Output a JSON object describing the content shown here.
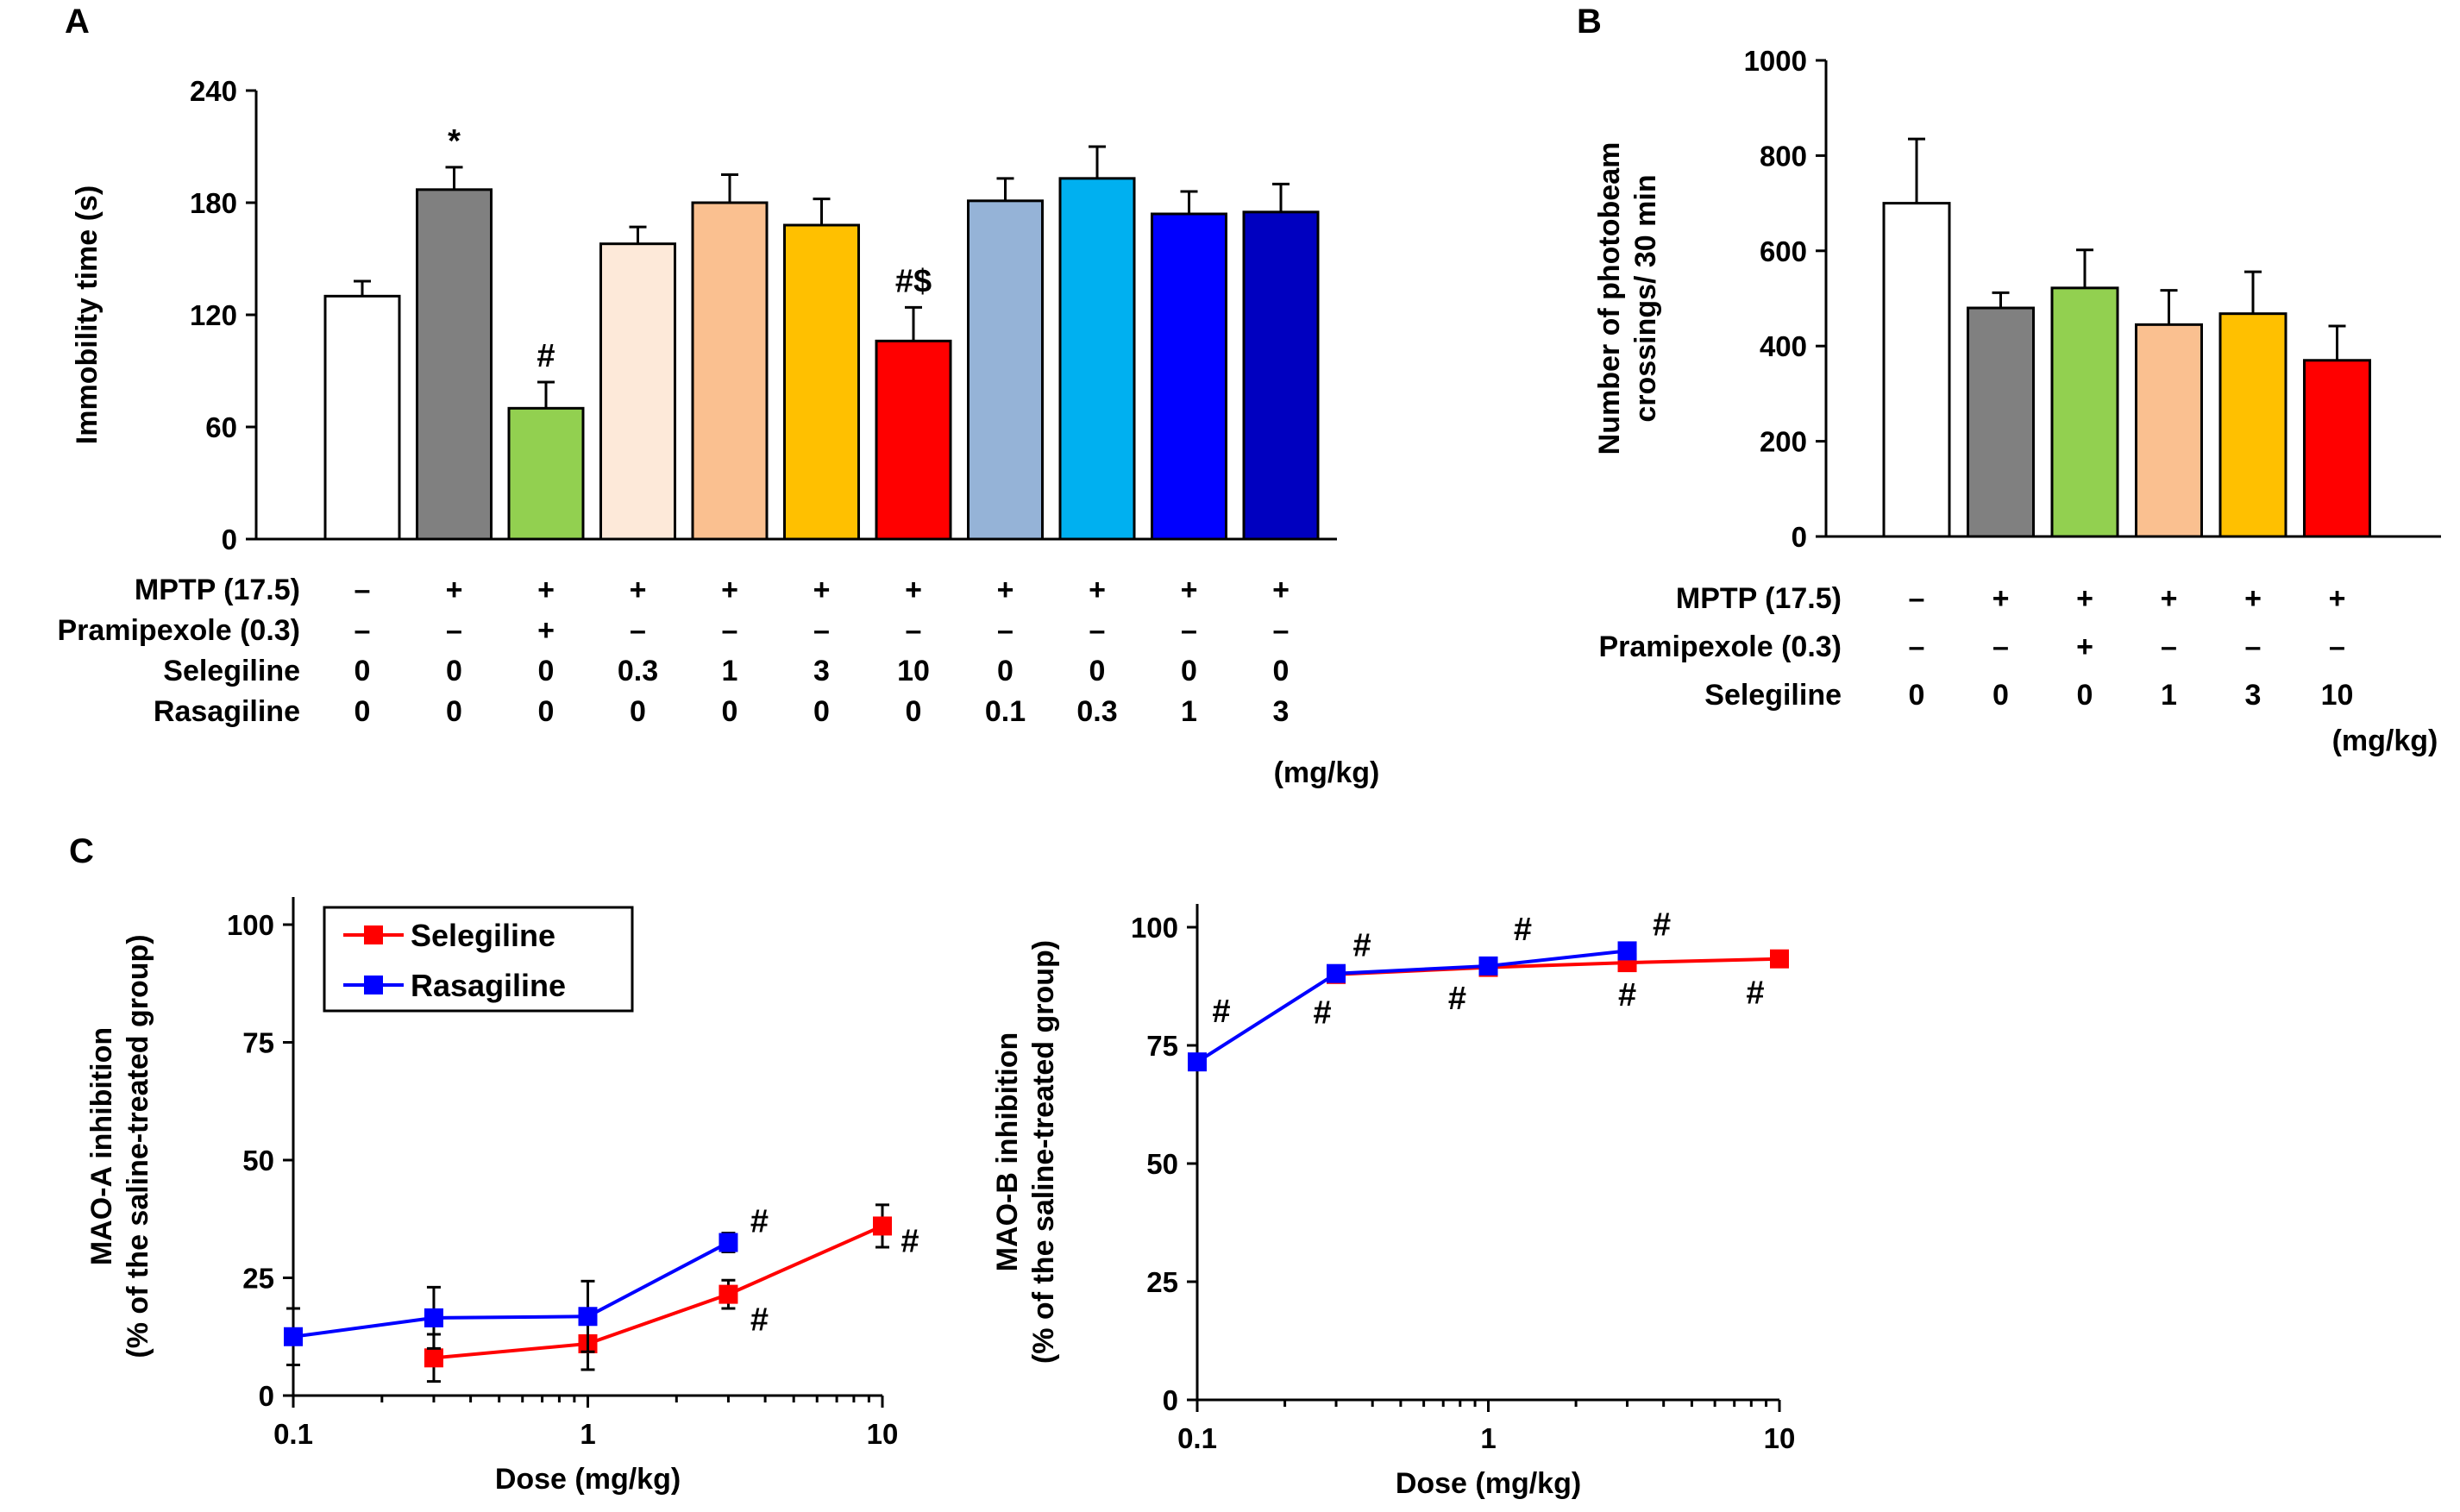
{
  "chart_data": [
    {
      "panel": "A",
      "type": "bar",
      "ylabel": "Immobility time (s)",
      "ylim": [
        0,
        240
      ],
      "yticks": [
        0,
        60,
        120,
        180,
        240
      ],
      "values": [
        130,
        187,
        70,
        158,
        180,
        168,
        106,
        181,
        193,
        174,
        175
      ],
      "errors": [
        8,
        12,
        14,
        9,
        15,
        14,
        18,
        12,
        17,
        12,
        15
      ],
      "colors": [
        "#ffffff",
        "#808080",
        "#92d050",
        "#fde9d9",
        "#fac090",
        "#ffc000",
        "#ff0000",
        "#95b3d7",
        "#00b0f0",
        "#0000ff",
        "#0000c0"
      ],
      "annotations": [
        "",
        "*",
        "#",
        "",
        "",
        "",
        "#$",
        "",
        "",
        "",
        ""
      ],
      "table": [
        {
          "label": "MPTP (17.5)",
          "cells": [
            "–",
            "+",
            "+",
            "+",
            "+",
            "+",
            "+",
            "+",
            "+",
            "+",
            "+"
          ]
        },
        {
          "label": "Pramipexole (0.3)",
          "cells": [
            "–",
            "–",
            "+",
            "–",
            "–",
            "–",
            "–",
            "–",
            "–",
            "–",
            "–"
          ]
        },
        {
          "label": "Selegiline",
          "cells": [
            "0",
            "0",
            "0",
            "0.3",
            "1",
            "3",
            "10",
            "0",
            "0",
            "0",
            "0"
          ]
        },
        {
          "label": "Rasagiline",
          "cells": [
            "0",
            "0",
            "0",
            "0",
            "0",
            "0",
            "0",
            "0.1",
            "0.3",
            "1",
            "3"
          ]
        }
      ],
      "unit": "(mg/kg)"
    },
    {
      "panel": "B",
      "type": "bar",
      "ylabel": "Number of photobeam crossings/ 30 min",
      "ylabel_lines": [
        "Number of photobeam",
        "crossings/ 30 min"
      ],
      "ylim": [
        0,
        1000
      ],
      "yticks": [
        0,
        200,
        400,
        600,
        800,
        1000
      ],
      "values": [
        700,
        480,
        522,
        445,
        468,
        370
      ],
      "errors": [
        135,
        32,
        80,
        72,
        88,
        72
      ],
      "colors": [
        "#ffffff",
        "#808080",
        "#92d050",
        "#fac090",
        "#ffc000",
        "#ff0000"
      ],
      "table": [
        {
          "label": "MPTP (17.5)",
          "cells": [
            "–",
            "+",
            "+",
            "+",
            "+",
            "+"
          ]
        },
        {
          "label": "Pramipexole (0.3)",
          "cells": [
            "–",
            "–",
            "+",
            "–",
            "–",
            "–"
          ]
        },
        {
          "label": "Selegiline",
          "cells": [
            "0",
            "0",
            "0",
            "1",
            "3",
            "10"
          ]
        }
      ],
      "unit": "(mg/kg)"
    },
    {
      "panel": "C",
      "type": "line",
      "xscale": "log",
      "xlabel": "Dose (mg/kg)",
      "ylabel": "MAO-A inhibition (% of the saline-treated group)",
      "ylabel_lines": [
        "MAO-A inhibition",
        "(% of the saline-treated group)"
      ],
      "ylim": [
        0,
        100
      ],
      "yticks": [
        0,
        25,
        50,
        75,
        100
      ],
      "xticks": [
        0.1,
        1,
        10
      ],
      "xtick_labels": [
        "0.1",
        "1",
        "10"
      ],
      "legend": [
        "Selegiline",
        "Rasagiline"
      ],
      "series": [
        {
          "name": "Selegiline",
          "color": "#ff0000",
          "x": [
            0.3,
            1,
            3,
            10
          ],
          "y": [
            8,
            11,
            21.5,
            36
          ],
          "err": [
            5,
            5.5,
            3,
            4.5
          ],
          "marks": [
            "",
            "",
            "#",
            "#"
          ]
        },
        {
          "name": "Rasagiline",
          "color": "#0000ff",
          "x": [
            0.1,
            0.3,
            1,
            3
          ],
          "y": [
            12.5,
            16.5,
            16.8,
            32.5
          ],
          "err": [
            6,
            6.5,
            7.5,
            2
          ],
          "marks": [
            "",
            "",
            "",
            "#"
          ]
        }
      ]
    },
    {
      "panel": "C2",
      "type": "line",
      "xscale": "log",
      "xlabel": "Dose (mg/kg)",
      "ylabel": "MAO-B inhibition (% of the saline-treated group)",
      "ylabel_lines": [
        "MAO-B inhibition",
        "(% of the saline-treated group)"
      ],
      "ylim": [
        0,
        100
      ],
      "yticks": [
        0,
        25,
        50,
        75,
        100
      ],
      "xticks": [
        0.1,
        1,
        10
      ],
      "xtick_labels": [
        "0.1",
        "1",
        "10"
      ],
      "series": [
        {
          "name": "Selegiline",
          "color": "#ff0000",
          "x": [
            0.3,
            1,
            3,
            10
          ],
          "y": [
            90,
            91.5,
            92.5,
            93.3
          ],
          "err": [
            1,
            1,
            1,
            1
          ],
          "marks": [
            "#",
            "#",
            "#",
            "#"
          ]
        },
        {
          "name": "Rasagiline",
          "color": "#0000ff",
          "x": [
            0.1,
            0.3,
            1,
            3
          ],
          "y": [
            71.5,
            90.2,
            91.8,
            95
          ],
          "err": [
            1.5,
            1,
            1,
            1
          ],
          "marks": [
            "#",
            "#",
            "#",
            "#"
          ]
        }
      ]
    }
  ]
}
